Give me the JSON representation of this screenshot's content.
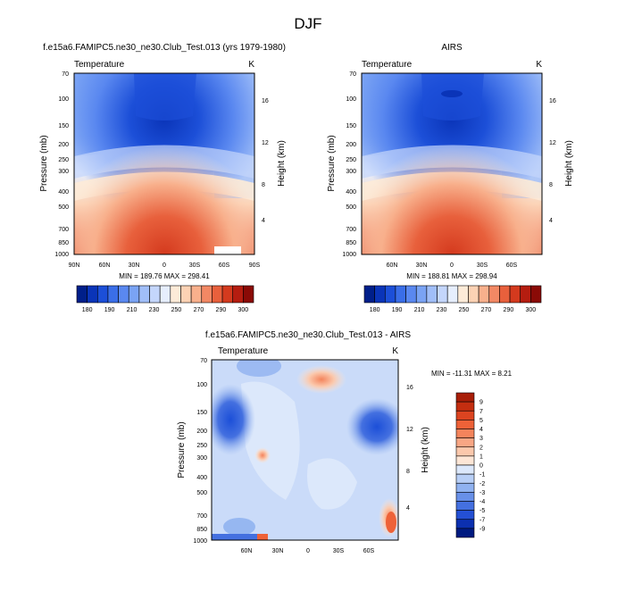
{
  "figure": {
    "title": "DJF"
  },
  "chart_data": [
    {
      "type": "heatmap",
      "title": "f.e15a6.FAMIPC5.ne30_ne30.Club_Test.013 (yrs 1979-1980)",
      "left_label": "Temperature",
      "right_label": "K",
      "ylabel": "Pressure (mb)",
      "ylabel_right": "Height (km)",
      "xticks": [
        "90N",
        "60N",
        "30N",
        "0",
        "30S",
        "60S",
        "90S"
      ],
      "yticks": [
        "70",
        "100",
        "150",
        "200",
        "250",
        "300",
        "400",
        "500",
        "700",
        "850",
        "1000"
      ],
      "height_ticks": [
        "16",
        "12",
        "8",
        "4"
      ],
      "stats": "MIN = 189.76   MAX = 298.41",
      "colorbar_labels": [
        "180",
        "190",
        "210",
        "230",
        "250",
        "270",
        "290",
        "300"
      ],
      "colorbar_colors": [
        "#001f8a",
        "#0a34b8",
        "#1c4fd8",
        "#3a6ee8",
        "#5a88f0",
        "#7aa3f4",
        "#a0bef8",
        "#c4d6fb",
        "#e6eefd",
        "#fdebd8",
        "#fcd2b4",
        "#f8b08c",
        "#f28864",
        "#e8603c",
        "#d43a1e",
        "#b51d10",
        "#8a0a06"
      ]
    },
    {
      "type": "heatmap",
      "title": "AIRS",
      "left_label": "Temperature",
      "right_label": "K",
      "ylabel": "Pressure (mb)",
      "ylabel_right": "Height (km)",
      "xticks": [
        "60N",
        "30N",
        "0",
        "30S",
        "60S"
      ],
      "yticks": [
        "70",
        "100",
        "150",
        "200",
        "250",
        "300",
        "400",
        "500",
        "700",
        "850",
        "1000"
      ],
      "height_ticks": [
        "16",
        "12",
        "8",
        "4"
      ],
      "stats": "MIN = 188.81   MAX = 298.94",
      "colorbar_labels": [
        "180",
        "190",
        "210",
        "230",
        "250",
        "270",
        "290",
        "300"
      ],
      "colorbar_colors": [
        "#001f8a",
        "#0a34b8",
        "#1c4fd8",
        "#3a6ee8",
        "#5a88f0",
        "#7aa3f4",
        "#a0bef8",
        "#c4d6fb",
        "#e6eefd",
        "#fdebd8",
        "#fcd2b4",
        "#f8b08c",
        "#f28864",
        "#e8603c",
        "#d43a1e",
        "#b51d10",
        "#8a0a06"
      ]
    },
    {
      "type": "heatmap",
      "title": "f.e15a6.FAMIPC5.ne30_ne30.Club_Test.013 - AIRS",
      "left_label": "Temperature",
      "right_label": "K",
      "ylabel": "Pressure (mb)",
      "ylabel_right": "Height (km)",
      "xticks": [
        "60N",
        "30N",
        "0",
        "30S",
        "60S"
      ],
      "yticks": [
        "70",
        "100",
        "150",
        "200",
        "250",
        "300",
        "400",
        "500",
        "700",
        "850",
        "1000"
      ],
      "height_ticks": [
        "16",
        "12",
        "8",
        "4"
      ],
      "stats": "MIN = -11.31   MAX =   8.21",
      "colorbar_labels": [
        "9",
        "7",
        "5",
        "4",
        "3",
        "2",
        "1",
        "0",
        "-1",
        "-2",
        "-3",
        "-4",
        "-5",
        "-7",
        "-9"
      ],
      "colorbar_colors": [
        "#a81e08",
        "#c42e10",
        "#dc4420",
        "#ee6238",
        "#f4845c",
        "#f8a684",
        "#fbc8ac",
        "#fde6d6",
        "#dce8fb",
        "#b8cff6",
        "#90b2f0",
        "#6890e8",
        "#4470e0",
        "#2450d4",
        "#0c30b0",
        "#001a80"
      ]
    }
  ]
}
